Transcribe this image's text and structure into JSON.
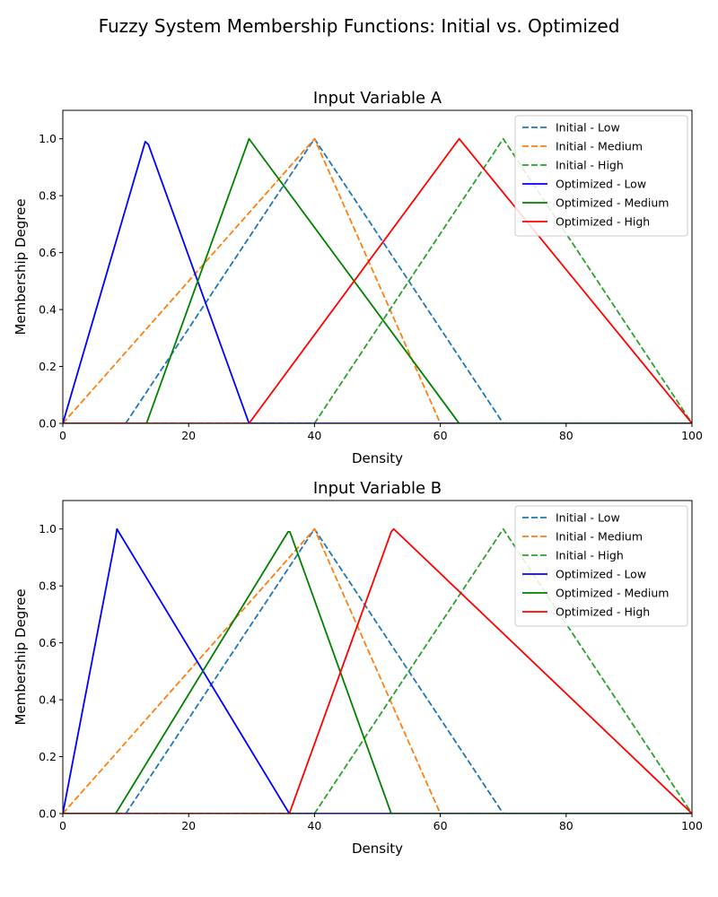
{
  "figure": {
    "title": "Fuzzy System Membership Functions: Initial vs. Optimized"
  },
  "chart_data": [
    {
      "type": "line",
      "title": "Input Variable A",
      "xlabel": "Density",
      "ylabel": "Membership Degree",
      "xlim": [
        0,
        100
      ],
      "ylim": [
        0,
        1.1
      ],
      "xticks": [
        "0",
        "20",
        "40",
        "60",
        "80",
        "100"
      ],
      "yticks": [
        "0.0",
        "0.2",
        "0.4",
        "0.6",
        "0.8",
        "1.0"
      ],
      "grid": false,
      "legend_position": "top-right",
      "series": [
        {
          "name": "Initial - Low",
          "color": "#1f77b4",
          "style": "dashed",
          "points": [
            [
              0,
              0
            ],
            [
              10,
              0
            ],
            [
              40,
              1
            ],
            [
              70,
              0
            ],
            [
              100,
              0
            ]
          ]
        },
        {
          "name": "Initial - Medium",
          "color": "#ff7f0e",
          "style": "dashed",
          "points": [
            [
              0,
              0
            ],
            [
              40,
              1
            ],
            [
              60,
              0
            ],
            [
              100,
              0
            ]
          ]
        },
        {
          "name": "Initial - High",
          "color": "#2ca02c",
          "style": "dashed",
          "points": [
            [
              0,
              0
            ],
            [
              40,
              0
            ],
            [
              70,
              1
            ],
            [
              100,
              0
            ]
          ]
        },
        {
          "name": "Optimized - Low",
          "color": "#0000ff",
          "style": "solid",
          "points": [
            [
              0,
              0
            ],
            [
              13.1,
              0.99
            ],
            [
              13.6,
              0.98
            ],
            [
              29.6,
              0
            ],
            [
              100,
              0
            ]
          ]
        },
        {
          "name": "Optimized - Medium",
          "color": "#008000",
          "style": "solid",
          "points": [
            [
              0,
              0
            ],
            [
              13.3,
              0
            ],
            [
              29.6,
              1
            ],
            [
              63,
              0
            ],
            [
              100,
              0
            ]
          ]
        },
        {
          "name": "Optimized - High",
          "color": "#ff0000",
          "style": "solid",
          "points": [
            [
              0,
              0
            ],
            [
              29.6,
              0
            ],
            [
              63,
              1
            ],
            [
              100,
              0
            ]
          ]
        }
      ]
    },
    {
      "type": "line",
      "title": "Input Variable B",
      "xlabel": "Density",
      "ylabel": "Membership Degree",
      "xlim": [
        0,
        100
      ],
      "ylim": [
        0,
        1.1
      ],
      "xticks": [
        "0",
        "20",
        "40",
        "60",
        "80",
        "100"
      ],
      "yticks": [
        "0.0",
        "0.2",
        "0.4",
        "0.6",
        "0.8",
        "1.0"
      ],
      "grid": false,
      "legend_position": "top-right",
      "series": [
        {
          "name": "Initial - Low",
          "color": "#1f77b4",
          "style": "dashed",
          "points": [
            [
              0,
              0
            ],
            [
              10,
              0
            ],
            [
              40,
              1
            ],
            [
              70,
              0
            ],
            [
              100,
              0
            ]
          ]
        },
        {
          "name": "Initial - Medium",
          "color": "#ff7f0e",
          "style": "dashed",
          "points": [
            [
              0,
              0
            ],
            [
              40,
              1
            ],
            [
              60,
              0
            ],
            [
              100,
              0
            ]
          ]
        },
        {
          "name": "Initial - High",
          "color": "#2ca02c",
          "style": "dashed",
          "points": [
            [
              0,
              0
            ],
            [
              40,
              0
            ],
            [
              70,
              1
            ],
            [
              100,
              0
            ]
          ]
        },
        {
          "name": "Optimized - Low",
          "color": "#0000ff",
          "style": "solid",
          "points": [
            [
              0,
              0
            ],
            [
              8.4,
              0.97
            ],
            [
              8.6,
              1
            ],
            [
              36,
              0
            ],
            [
              100,
              0
            ]
          ]
        },
        {
          "name": "Optimized - Medium",
          "color": "#008000",
          "style": "solid",
          "points": [
            [
              0,
              0
            ],
            [
              8.4,
              0
            ],
            [
              35.8,
              0.99
            ],
            [
              36.1,
              0.99
            ],
            [
              52.2,
              0
            ],
            [
              100,
              0
            ]
          ]
        },
        {
          "name": "Optimized - High",
          "color": "#ff0000",
          "style": "solid",
          "points": [
            [
              0,
              0
            ],
            [
              36,
              0
            ],
            [
              52.2,
              0.99
            ],
            [
              52.6,
              1
            ],
            [
              100,
              0
            ]
          ]
        }
      ]
    }
  ]
}
